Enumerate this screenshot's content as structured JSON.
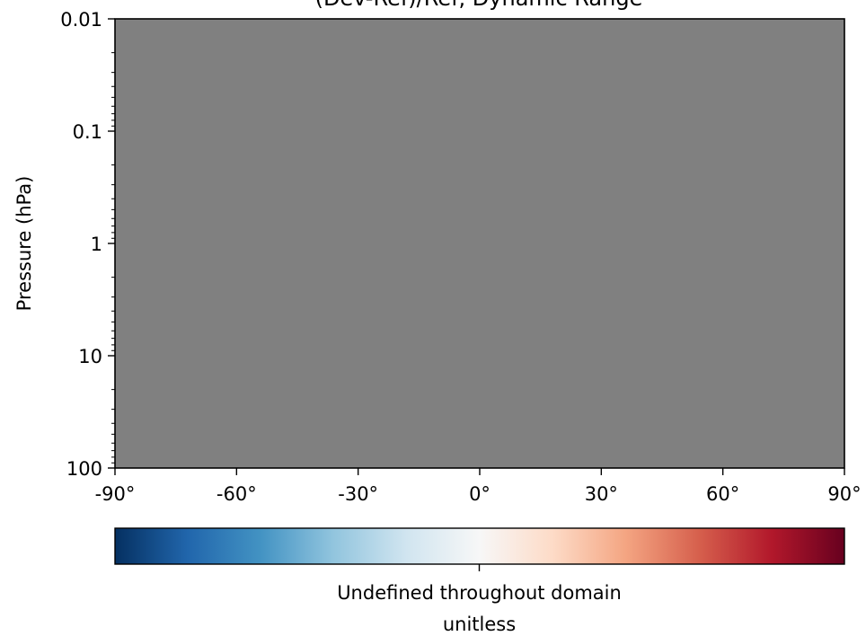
{
  "chart_data": {
    "type": "heatmap",
    "title": "(Dev-Ref)/Ref, Dynamic Range",
    "xlabel": "",
    "ylabel": "Pressure (hPa)",
    "x_scale": "linear",
    "y_scale": "log",
    "y_inverted": true,
    "xlim": [
      -90,
      90
    ],
    "ylim": [
      100,
      0.01
    ],
    "x_ticks": [
      -90,
      -60,
      -30,
      0,
      30,
      60,
      90
    ],
    "x_tick_labels": [
      "-90°",
      "-60°",
      "-30°",
      "0°",
      "30°",
      "60°",
      "90°"
    ],
    "y_ticks": [
      0.01,
      0.1,
      1,
      10,
      100
    ],
    "y_tick_labels": [
      "0.01",
      "0.1",
      "1",
      "10",
      "100"
    ],
    "field_color": "#808080",
    "field_uniform": true,
    "grid": false,
    "colorbar": {
      "colormap": "RdBu_r",
      "orientation": "horizontal",
      "tick_label": "Undefined throughout domain",
      "units_label": "unitless",
      "colors": [
        "#053061",
        "#2166ac",
        "#4393c3",
        "#92c5de",
        "#d1e5f0",
        "#f7f7f7",
        "#fddbc7",
        "#f4a582",
        "#d6604d",
        "#b2182b",
        "#67001f"
      ]
    }
  }
}
